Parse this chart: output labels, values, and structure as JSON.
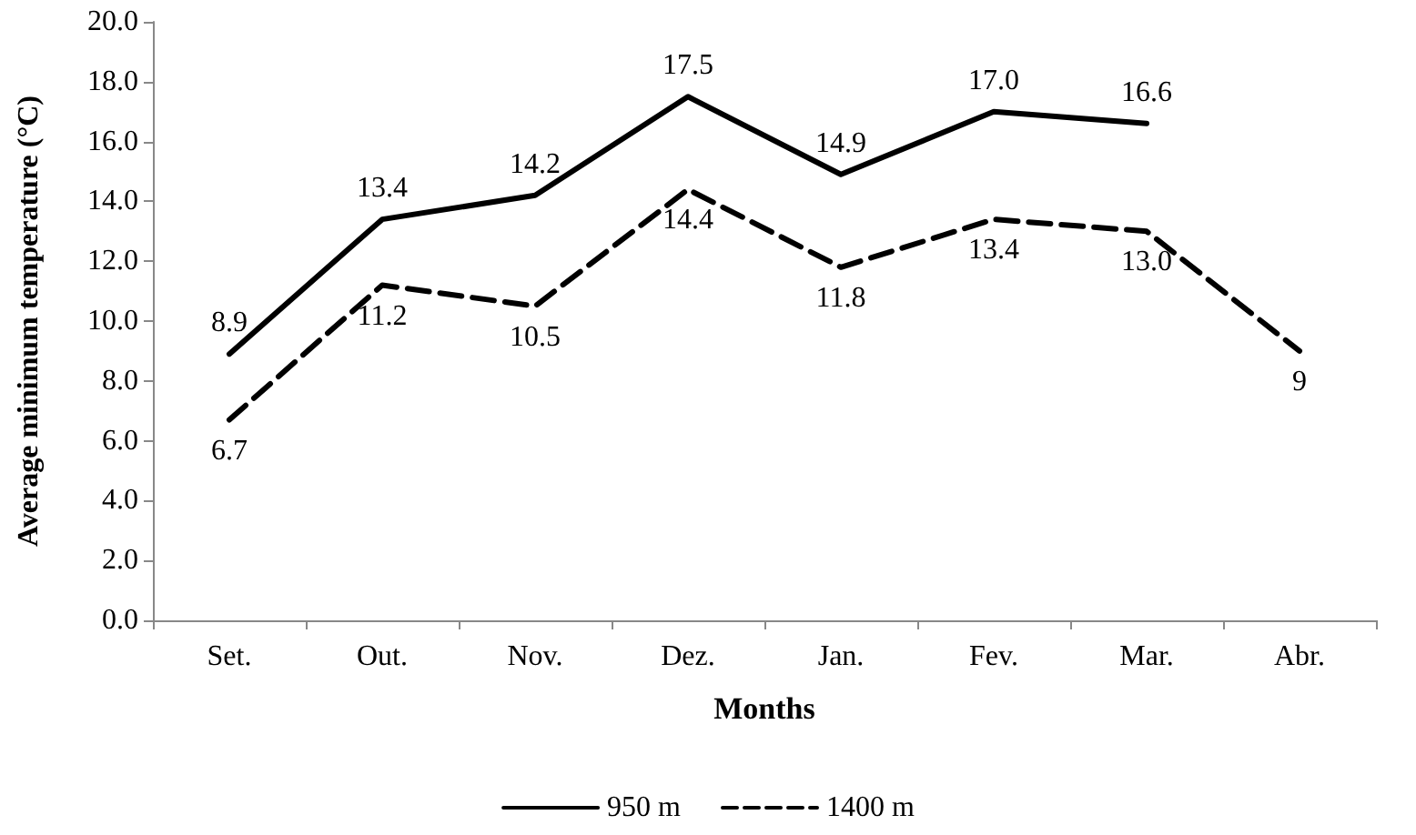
{
  "chart_data": {
    "type": "line",
    "xlabel": "Months",
    "ylabel": "Average minimum temperature (°C)",
    "categories": [
      "Set.",
      "Out.",
      "Nov.",
      "Dez.",
      "Jan.",
      "Fev.",
      "Mar.",
      "Abr."
    ],
    "series": [
      {
        "name": "950 m",
        "color": "#000000",
        "line_style": "solid",
        "values": [
          8.9,
          13.4,
          14.2,
          17.5,
          14.9,
          17.0,
          16.6,
          null
        ],
        "value_labels": [
          "8.9",
          "13.4",
          "14.2",
          "17.5",
          "14.9",
          "17.0",
          "16.6",
          null
        ]
      },
      {
        "name": "1400 m",
        "color": "#000000",
        "line_style": "dashed",
        "values": [
          6.7,
          11.2,
          10.5,
          14.4,
          11.8,
          13.4,
          13.0,
          9
        ],
        "value_labels": [
          "6.7",
          "11.2",
          "10.5",
          "14.4",
          "11.8",
          "13.4",
          "13.0",
          "9"
        ]
      }
    ],
    "ylim": [
      0,
      20
    ],
    "yticks": [
      {
        "value": 0,
        "label": "0.0"
      },
      {
        "value": 2,
        "label": "2.0"
      },
      {
        "value": 4,
        "label": "4.0"
      },
      {
        "value": 6,
        "label": "6.0"
      },
      {
        "value": 8,
        "label": "8.0"
      },
      {
        "value": 10,
        "label": "10.0"
      },
      {
        "value": 12,
        "label": "12.0"
      },
      {
        "value": 14,
        "label": "14.0"
      },
      {
        "value": 16,
        "label": "16.0"
      },
      {
        "value": 18,
        "label": "18.0"
      },
      {
        "value": 20,
        "label": "20.0"
      }
    ],
    "grid": false,
    "legend": "bottom",
    "marker": "none"
  }
}
